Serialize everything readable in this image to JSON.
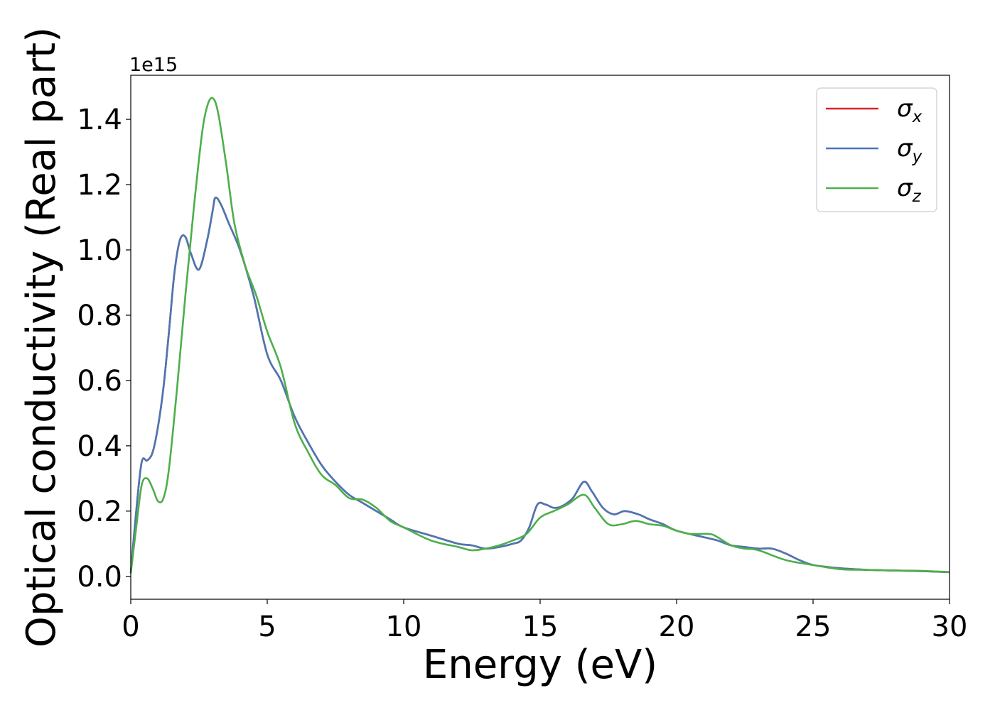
{
  "chart_data": {
    "type": "line",
    "xlabel": "Energy (eV)",
    "ylabel": "Optical conductivity (Real part)",
    "y_offset_label": "1e15",
    "xlim": [
      0,
      30
    ],
    "ylim": [
      -0.07,
      1.535
    ],
    "y_scale_factor": 1000000000000000.0,
    "x_ticks": [
      0,
      5,
      10,
      15,
      20,
      25,
      30
    ],
    "x_tick_labels": [
      "0",
      "5",
      "10",
      "15",
      "20",
      "25",
      "30"
    ],
    "y_ticks": [
      0.0,
      0.2,
      0.4,
      0.6,
      0.8,
      1.0,
      1.2,
      1.4
    ],
    "y_tick_labels": [
      "0.0",
      "0.2",
      "0.4",
      "0.6",
      "0.8",
      "1.0",
      "1.2",
      "1.4"
    ],
    "grid": false,
    "legend_position": "top-right",
    "series": [
      {
        "name": "σx",
        "symbol": "σ",
        "subscript": "x",
        "color": "#d62728",
        "x": [
          0,
          0.2,
          0.4,
          0.6,
          0.8,
          1.0,
          1.2,
          1.4,
          1.6,
          1.8,
          2.0,
          2.2,
          2.5,
          2.8,
          3.0,
          3.1,
          3.3,
          3.6,
          4.0,
          4.5,
          5.0,
          5.5,
          6.0,
          6.5,
          7.0,
          7.5,
          8.0,
          8.5,
          9.0,
          9.5,
          10,
          11,
          12,
          12.5,
          13,
          13.5,
          14,
          14.3,
          14.6,
          14.9,
          15.2,
          15.5,
          15.8,
          16.2,
          16.6,
          16.9,
          17.3,
          17.7,
          18.1,
          18.6,
          19.0,
          19.5,
          20,
          21,
          21.5,
          22,
          22.5,
          23,
          23.5,
          24,
          24.5,
          25,
          26,
          27,
          28,
          29,
          30
        ],
        "y": [
          0.01,
          0.2,
          0.35,
          0.355,
          0.38,
          0.46,
          0.58,
          0.75,
          0.93,
          1.03,
          1.04,
          0.99,
          0.94,
          1.03,
          1.12,
          1.16,
          1.14,
          1.08,
          1.0,
          0.86,
          0.68,
          0.6,
          0.49,
          0.41,
          0.34,
          0.29,
          0.25,
          0.225,
          0.2,
          0.175,
          0.15,
          0.125,
          0.1,
          0.095,
          0.085,
          0.09,
          0.1,
          0.11,
          0.15,
          0.22,
          0.22,
          0.21,
          0.215,
          0.24,
          0.29,
          0.26,
          0.21,
          0.19,
          0.2,
          0.19,
          0.175,
          0.16,
          0.14,
          0.12,
          0.11,
          0.095,
          0.09,
          0.085,
          0.085,
          0.07,
          0.05,
          0.035,
          0.025,
          0.02,
          0.018,
          0.016,
          0.013
        ]
      },
      {
        "name": "σy",
        "symbol": "σ",
        "subscript": "y",
        "color": "#4a77b4",
        "x": [
          0,
          0.2,
          0.4,
          0.6,
          0.8,
          1.0,
          1.2,
          1.4,
          1.6,
          1.8,
          2.0,
          2.2,
          2.5,
          2.8,
          3.0,
          3.1,
          3.3,
          3.6,
          4.0,
          4.5,
          5.0,
          5.5,
          6.0,
          6.5,
          7.0,
          7.5,
          8.0,
          8.5,
          9.0,
          9.5,
          10,
          11,
          12,
          12.5,
          13,
          13.5,
          14,
          14.3,
          14.6,
          14.9,
          15.2,
          15.5,
          15.8,
          16.2,
          16.6,
          16.9,
          17.3,
          17.7,
          18.1,
          18.6,
          19.0,
          19.5,
          20,
          21,
          21.5,
          22,
          22.5,
          23,
          23.5,
          24,
          24.5,
          25,
          26,
          27,
          28,
          29,
          30
        ],
        "y": [
          0.01,
          0.2,
          0.35,
          0.355,
          0.38,
          0.46,
          0.58,
          0.75,
          0.93,
          1.03,
          1.04,
          0.99,
          0.94,
          1.03,
          1.12,
          1.16,
          1.14,
          1.08,
          1.0,
          0.86,
          0.68,
          0.6,
          0.49,
          0.41,
          0.34,
          0.29,
          0.25,
          0.225,
          0.2,
          0.175,
          0.15,
          0.125,
          0.1,
          0.095,
          0.085,
          0.09,
          0.1,
          0.11,
          0.15,
          0.22,
          0.22,
          0.21,
          0.215,
          0.24,
          0.29,
          0.26,
          0.21,
          0.19,
          0.2,
          0.19,
          0.175,
          0.16,
          0.14,
          0.12,
          0.11,
          0.095,
          0.09,
          0.085,
          0.085,
          0.07,
          0.05,
          0.035,
          0.025,
          0.02,
          0.018,
          0.016,
          0.013
        ]
      },
      {
        "name": "σz",
        "symbol": "σ",
        "subscript": "z",
        "color": "#4daf4a",
        "x": [
          0,
          0.2,
          0.4,
          0.6,
          0.8,
          1.0,
          1.2,
          1.4,
          1.7,
          2.0,
          2.3,
          2.6,
          2.8,
          3.0,
          3.2,
          3.5,
          3.8,
          4.2,
          4.6,
          5.0,
          5.5,
          6.0,
          6.5,
          7.0,
          7.5,
          8.0,
          8.5,
          9.0,
          9.5,
          10,
          11,
          12,
          12.5,
          13,
          13.5,
          14,
          14.5,
          15,
          15.5,
          16,
          16.6,
          17.0,
          17.5,
          18,
          18.5,
          19,
          19.5,
          20,
          20.5,
          21.2,
          21.5,
          22,
          22.5,
          23,
          24,
          25,
          26,
          27,
          28,
          29,
          30
        ],
        "y": [
          0.01,
          0.15,
          0.28,
          0.3,
          0.27,
          0.23,
          0.24,
          0.33,
          0.58,
          0.86,
          1.12,
          1.35,
          1.44,
          1.465,
          1.42,
          1.26,
          1.08,
          0.95,
          0.86,
          0.75,
          0.64,
          0.47,
          0.38,
          0.31,
          0.28,
          0.24,
          0.235,
          0.21,
          0.17,
          0.15,
          0.11,
          0.09,
          0.08,
          0.085,
          0.095,
          0.11,
          0.13,
          0.18,
          0.2,
          0.22,
          0.25,
          0.21,
          0.16,
          0.16,
          0.17,
          0.16,
          0.155,
          0.14,
          0.13,
          0.13,
          0.12,
          0.095,
          0.085,
          0.08,
          0.05,
          0.035,
          0.022,
          0.02,
          0.018,
          0.017,
          0.013
        ]
      }
    ]
  }
}
